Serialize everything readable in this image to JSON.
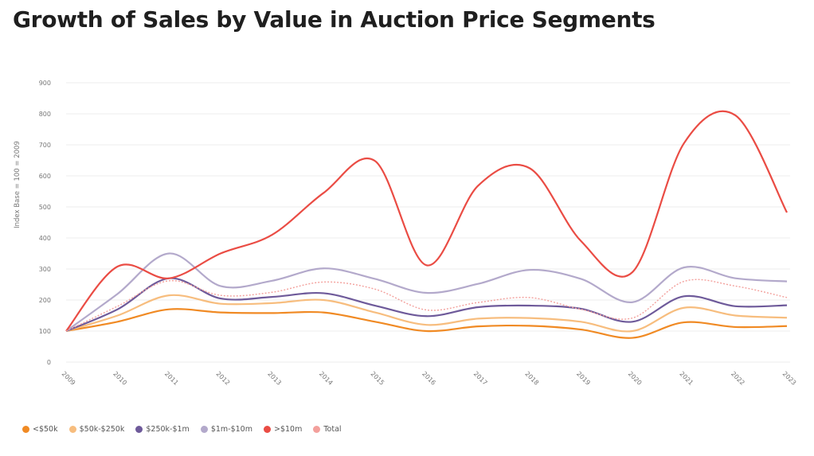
{
  "title": "Growth of Sales by Value in Auction Price Segments",
  "chart_data": {
    "type": "line",
    "title": "Growth of Sales by Value in Auction Price Segments",
    "ylabel": "Index Base = 100 = 2009",
    "xlabel": "",
    "ylim": [
      0,
      900
    ],
    "yticks": [
      "0",
      "100",
      "200",
      "300",
      "400",
      "500",
      "600",
      "700",
      "800",
      "900"
    ],
    "categories": [
      "2009",
      "2010",
      "2011",
      "2012",
      "2013",
      "2014",
      "2015",
      "2016",
      "2017",
      "2018",
      "2019",
      "2020",
      "2021",
      "2022",
      "2023"
    ],
    "grid": true,
    "legend_position": "bottom-left",
    "series": [
      {
        "name": "<$50k",
        "color": "#f08a24",
        "dashed": false,
        "values": [
          100,
          130,
          170,
          160,
          158,
          160,
          130,
          100,
          115,
          117,
          105,
          78,
          128,
          113,
          116
        ]
      },
      {
        "name": "$50k-$250k",
        "color": "#f7bd7e",
        "dashed": false,
        "values": [
          100,
          150,
          215,
          188,
          190,
          200,
          160,
          120,
          140,
          142,
          130,
          100,
          175,
          150,
          143
        ]
      },
      {
        "name": "$250k-$1m",
        "color": "#6e5a9a",
        "dashed": false,
        "values": [
          100,
          170,
          270,
          205,
          210,
          222,
          182,
          148,
          177,
          182,
          172,
          130,
          212,
          180,
          183
        ]
      },
      {
        "name": "$1m-$10m",
        "color": "#b3a9cb",
        "dashed": false,
        "values": [
          100,
          220,
          350,
          245,
          262,
          302,
          268,
          223,
          252,
          297,
          268,
          193,
          305,
          270,
          260
        ]
      },
      {
        "name": ">$10m",
        "color": "#ea4c44",
        "dashed": false,
        "values": [
          100,
          308,
          270,
          350,
          410,
          545,
          648,
          312,
          568,
          625,
          390,
          290,
          705,
          795,
          482
        ]
      },
      {
        "name": "Total",
        "color": "#f3a09c",
        "dashed": true,
        "values": [
          100,
          180,
          262,
          215,
          225,
          258,
          235,
          168,
          192,
          208,
          170,
          142,
          260,
          245,
          208
        ]
      }
    ]
  }
}
